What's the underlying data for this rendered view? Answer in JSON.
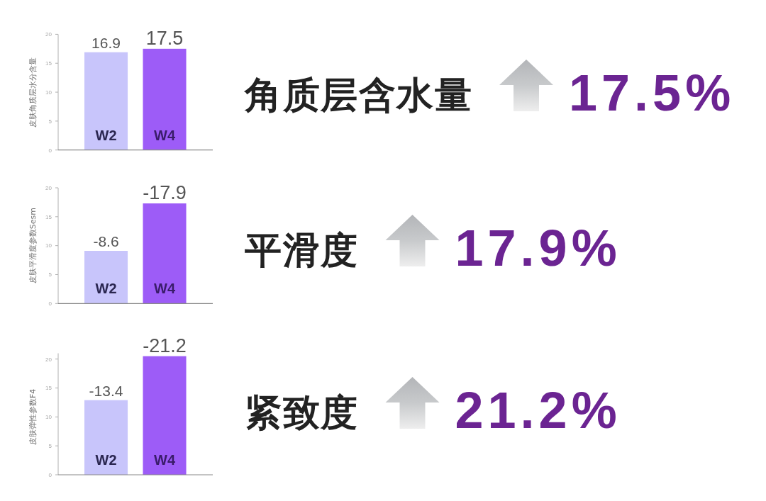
{
  "chart_data": [
    {
      "type": "bar",
      "categories": [
        "W2",
        "W4"
      ],
      "values": [
        16.9,
        17.5
      ],
      "colors": [
        "#c8c5fb",
        "#9d5cf7"
      ],
      "ylabel": "皮肤角质层水分含量",
      "ylim": [
        0,
        20
      ],
      "yticks": [
        0,
        5,
        10,
        15,
        20
      ],
      "data_labels": true,
      "annotations": [
        "角质层含水量",
        "17.5%"
      ]
    },
    {
      "type": "bar",
      "categories": [
        "W2",
        "W4"
      ],
      "values": [
        9.1,
        17.3
      ],
      "colors": [
        "#c8c5fb",
        "#9d5cf7"
      ],
      "ylabel": "皮肤平滑度参数Sesm",
      "ylim": [
        0,
        20
      ],
      "yticks": [
        0,
        5,
        10,
        15,
        20
      ],
      "annotations": [
        "平滑度",
        "17.9%",
        {
          "text": "-8.6",
          "x": "W2",
          "y": 9.1
        },
        {
          "text": "-17.9",
          "x": "W4",
          "y": 17.3
        }
      ]
    },
    {
      "type": "bar",
      "categories": [
        "W2",
        "W4"
      ],
      "values": [
        12.9,
        20.5
      ],
      "colors": [
        "#c8c5fb",
        "#9d5cf7"
      ],
      "ylabel": "皮肤弹性参数F4",
      "ylim": [
        0,
        21
      ],
      "yticks": [
        0,
        5,
        10,
        15,
        20
      ],
      "annotations": [
        "紧致度",
        "21.2%",
        {
          "text": "-13.4",
          "x": "W2",
          "y": 12.9
        },
        {
          "text": "-21.2",
          "x": "W4",
          "y": 20.5
        }
      ]
    }
  ]
}
